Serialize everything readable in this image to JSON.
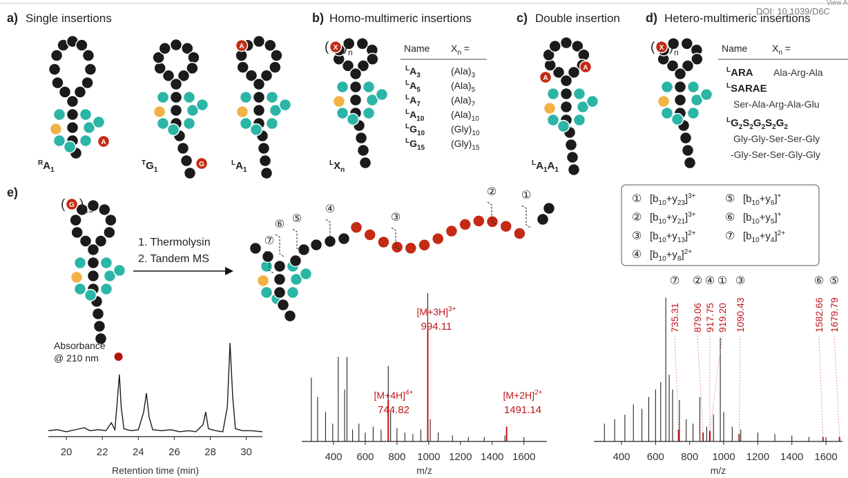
{
  "header": {
    "view": "View A",
    "doi": "DOI: 10.1039/D6C"
  },
  "panel_a": {
    "label": "a)",
    "title": "Single insertions",
    "items": [
      {
        "name": [
          {
            "sup": "R"
          },
          "A",
          {
            "sub": "1"
          }
        ],
        "insert": "A"
      },
      {
        "name": [
          {
            "sup": "T"
          },
          "G",
          {
            "sub": "1"
          }
        ],
        "insert": "G"
      },
      {
        "name": [
          {
            "sup": "L"
          },
          "A",
          {
            "sub": "1"
          }
        ],
        "insert": "A"
      }
    ]
  },
  "panel_b": {
    "label": "b)",
    "title": "Homo-multimeric insertions",
    "insert": "X",
    "paren_open": "(",
    "paren_close": ")",
    "repeat": "n",
    "name": [
      {
        "sup": "L"
      },
      "X",
      {
        "sub": "n"
      }
    ],
    "table": {
      "header": {
        "name": "Name",
        "xn": [
          "X",
          {
            "sub": "n"
          },
          " ="
        ]
      },
      "rows": [
        {
          "name": [
            {
              "sup": "L"
            },
            "A",
            {
              "sub": "3"
            }
          ],
          "seq": [
            "(Ala)",
            {
              "sub": "3"
            }
          ]
        },
        {
          "name": [
            {
              "sup": "L"
            },
            "A",
            {
              "sub": "5"
            }
          ],
          "seq": [
            "(Ala)",
            {
              "sub": "5"
            }
          ]
        },
        {
          "name": [
            {
              "sup": "L"
            },
            "A",
            {
              "sub": "7"
            }
          ],
          "seq": [
            "(Ala)",
            {
              "sub": "7"
            }
          ]
        },
        {
          "name": [
            {
              "sup": "L"
            },
            "A",
            {
              "sub": "10"
            }
          ],
          "seq": [
            "(Ala)",
            {
              "sub": "10"
            }
          ]
        },
        {
          "name": [
            {
              "sup": "L"
            },
            "G",
            {
              "sub": "10"
            }
          ],
          "seq": [
            "(Gly)",
            {
              "sub": "10"
            }
          ]
        },
        {
          "name": [
            {
              "sup": "L"
            },
            "G",
            {
              "sub": "15"
            }
          ],
          "seq": [
            "(Gly)",
            {
              "sub": "15"
            }
          ]
        }
      ]
    }
  },
  "panel_c": {
    "label": "c)",
    "title": "Double insertion",
    "inserts": [
      "A",
      "A"
    ],
    "name": [
      {
        "sup": "L"
      },
      "A",
      {
        "sub": "1"
      },
      "A",
      {
        "sub": "1"
      }
    ]
  },
  "panel_d": {
    "label": "d)",
    "title": "Hetero-multimeric insertions",
    "insert": "X",
    "paren_open": "(",
    "paren_close": ")",
    "repeat": "n",
    "table": {
      "header": {
        "name": "Name",
        "xn": [
          "X",
          {
            "sub": "n"
          },
          " ="
        ]
      },
      "rows": [
        {
          "name": [
            {
              "sup": "L"
            },
            "ARA"
          ],
          "seq": [
            "Ala-Arg-Ala"
          ]
        },
        {
          "name": [
            {
              "sup": "L"
            },
            "SARAE"
          ],
          "seq": [
            "Ser-Ala-Arg-Ala-Glu"
          ]
        },
        {
          "name": [
            {
              "sup": "L"
            },
            "G",
            {
              "sub": "2"
            },
            "S",
            {
              "sub": "2"
            },
            "G",
            {
              "sub": "2"
            },
            "S",
            {
              "sub": "2"
            },
            "G",
            {
              "sub": "2"
            }
          ],
          "seq": [
            "Gly-Gly-Ser-Ser-Gly",
            "-Gly-Ser-Ser-Gly-Gly"
          ]
        }
      ]
    }
  },
  "panel_e": {
    "label": "e)",
    "insert": "G",
    "paren_open": "(",
    "paren_close": ")",
    "repeat": "15",
    "steps": [
      "1. Thermolysin",
      "2. Tandem MS"
    ],
    "cut_labels": [
      "⑦",
      "⑥",
      "⑤",
      "④",
      "③",
      "②",
      "①"
    ],
    "legend": [
      {
        "mark": "①",
        "ion": [
          "[b",
          {
            "sub": "10"
          },
          "+y",
          {
            "sub": "23"
          },
          "]",
          {
            "sup": "3+"
          }
        ]
      },
      {
        "mark": "②",
        "ion": [
          "[b",
          {
            "sub": "10"
          },
          "+y",
          {
            "sub": "21"
          },
          "]",
          {
            "sup": "3+"
          }
        ]
      },
      {
        "mark": "③",
        "ion": [
          "[b",
          {
            "sub": "10"
          },
          "+y",
          {
            "sub": "13"
          },
          "]",
          {
            "sup": "2+"
          }
        ]
      },
      {
        "mark": "④",
        "ion": [
          "[b",
          {
            "sub": "10"
          },
          "+y",
          {
            "sub": "8"
          },
          "]",
          {
            "sup": "2+"
          }
        ]
      },
      {
        "mark": "⑤",
        "ion": [
          "[b",
          {
            "sub": "10"
          },
          "+y",
          {
            "sub": "6"
          },
          "]",
          {
            "sup": "+"
          }
        ]
      },
      {
        "mark": "⑥",
        "ion": [
          "[b",
          {
            "sub": "10"
          },
          "+y",
          {
            "sub": "5"
          },
          "]",
          {
            "sup": "+"
          }
        ]
      },
      {
        "mark": "⑦",
        "ion": [
          "[b",
          {
            "sub": "10"
          },
          "+y",
          {
            "sub": "4"
          },
          "]",
          {
            "sup": "2+"
          }
        ]
      }
    ]
  },
  "chart_data": [
    {
      "type": "line",
      "y_label": [
        "Absorbance",
        "@ 210 nm"
      ],
      "x_label": "Retention time (min)",
      "xlim": [
        19,
        30.9
      ],
      "xticks": [
        20,
        22,
        24,
        26,
        28,
        30
      ],
      "ylim": [
        0,
        100
      ],
      "x": [
        19,
        19.5,
        20,
        20.5,
        21,
        21.3,
        21.8,
        22.2,
        22.5,
        22.7,
        22.85,
        22.95,
        23.05,
        23.2,
        23.6,
        24,
        24.3,
        24.45,
        24.6,
        24.8,
        25.3,
        25.8,
        26.3,
        26.8,
        27.2,
        27.6,
        27.75,
        27.9,
        28.3,
        28.7,
        28.95,
        29.1,
        29.25,
        29.4,
        29.8,
        30.3,
        30.9
      ],
      "series": [
        {
          "color": "#1a1a1a",
          "values": [
            6,
            7,
            5,
            7,
            9,
            6,
            7,
            6,
            14,
            7,
            40,
            63,
            30,
            8,
            6,
            7,
            25,
            44,
            20,
            7,
            6,
            7,
            5,
            6,
            5,
            12,
            25,
            8,
            6,
            5,
            30,
            95,
            40,
            8,
            6,
            6,
            5
          ]
        }
      ],
      "marker": {
        "x": 22.9,
        "y": 81,
        "color": "#b3140f"
      }
    },
    {
      "type": "spectrum",
      "x_label": "m/z",
      "xlim": [
        200,
        1745
      ],
      "xticks": [
        400,
        600,
        800,
        1000,
        1200,
        1400,
        1600
      ],
      "ylim": [
        0,
        100
      ],
      "series": [
        {
          "color": "#222222",
          "x": [
            260,
            300,
            350,
            395,
            430,
            470,
            485,
            520,
            560,
            600,
            650,
            700,
            745,
            760,
            800,
            850,
            900,
            950,
            994,
            1010,
            1060,
            1150,
            1250,
            1350,
            1480,
            1600
          ],
          "values": [
            43,
            30,
            20,
            12,
            57,
            35,
            57,
            8,
            12,
            6,
            10,
            8,
            51,
            20,
            9,
            6,
            5,
            8,
            100,
            15,
            6,
            4,
            3,
            3,
            4,
            3
          ]
        },
        {
          "color": "#c0141a",
          "x": [
            744.82,
            994.11,
            1491.14
          ],
          "values": [
            28,
            75,
            10
          ]
        }
      ],
      "annotations": [
        {
          "ion": [
            "[M+4H]",
            {
              "sup": "4+"
            }
          ]
        },
        {
          "ion": [
            "[M+3H]",
            {
              "sup": "3+"
            }
          ]
        },
        {
          "ion": [
            "[M+2H]",
            {
              "sup": "2+"
            }
          ]
        }
      ]
    },
    {
      "type": "spectrum",
      "x_label": "m/z",
      "xlim": [
        238,
        1697
      ],
      "xticks": [
        400,
        600,
        800,
        1000,
        1200,
        1400,
        1600
      ],
      "ylim": [
        0,
        100
      ],
      "series": [
        {
          "color": "#222222",
          "x": [
            300,
            360,
            420,
            470,
            520,
            560,
            600,
            630,
            660,
            680,
            700,
            740,
            780,
            820,
            860,
            900,
            940,
            980,
            1000,
            1050,
            1100,
            1200,
            1300,
            1400,
            1500,
            1600
          ],
          "values": [
            12,
            15,
            18,
            25,
            22,
            30,
            35,
            40,
            97,
            45,
            35,
            28,
            15,
            12,
            30,
            10,
            18,
            70,
            20,
            10,
            8,
            6,
            5,
            4,
            3,
            3
          ]
        },
        {
          "color": "#c0141a",
          "x": [
            735.31,
            879.06,
            917.75,
            919.2,
            1090.43,
            1582.66,
            1679.79
          ],
          "values": [
            8,
            6,
            7,
            7,
            5,
            3,
            3
          ],
          "x_labels": [
            "735.31",
            "879.06",
            "917.75",
            "919.20",
            "1090.43",
            "1582.66",
            "1679.79"
          ]
        }
      ],
      "markers": [
        "⑦",
        "②",
        "④",
        "①",
        "③",
        "⑥",
        "⑤"
      ]
    }
  ]
}
